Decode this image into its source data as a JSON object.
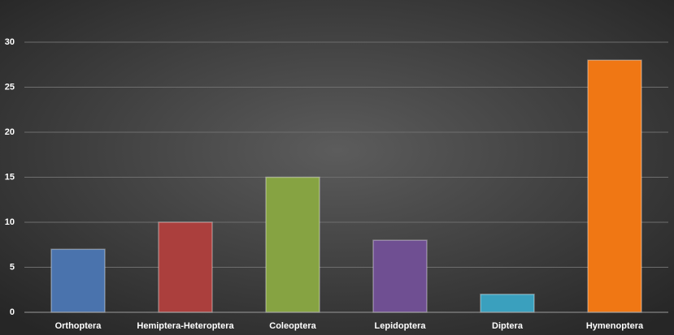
{
  "chart_data": {
    "type": "bar",
    "categories": [
      "Orthoptera",
      "Hemiptera-Heteroptera",
      "Coleoptera",
      "Lepidoptera",
      "Diptera",
      "Hymenoptera"
    ],
    "values": [
      7,
      10,
      15,
      8,
      2,
      28
    ],
    "colors": [
      "#4a73ad",
      "#ab3f3d",
      "#86a342",
      "#6f4f92",
      "#3aa0be",
      "#f07714"
    ],
    "ylim": [
      0,
      30
    ],
    "yticks": [
      0,
      5,
      10,
      15,
      20,
      25,
      30
    ],
    "grid": true
  }
}
